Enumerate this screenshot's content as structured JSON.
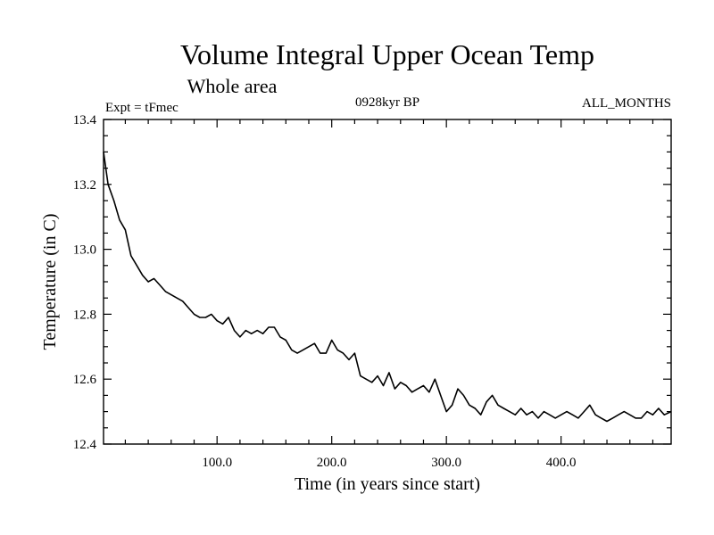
{
  "chart_data": {
    "type": "line",
    "title": "Volume Integral Upper Ocean Temp",
    "subtitle": "Whole area",
    "top_left_label": "Expt = tFmec",
    "top_center_label": "0928kyr BP",
    "top_right_label": "ALL_MONTHS",
    "xlabel": "Time (in years since start)",
    "ylabel": "Temperature (in C)",
    "xlim": [
      1,
      496
    ],
    "ylim": [
      12.4,
      13.4
    ],
    "x_ticks": [
      100,
      200,
      300,
      400
    ],
    "x_tick_labels": [
      "100.0",
      "200.0",
      "300.0",
      "400.0"
    ],
    "y_ticks": [
      12.4,
      12.6,
      12.8,
      13.0,
      13.2,
      13.4
    ],
    "y_tick_labels": [
      "12.4",
      "12.6",
      "12.8",
      "13.0",
      "13.2",
      "13.4"
    ],
    "grid": false,
    "series": [
      {
        "name": "Temperature",
        "x": [
          1,
          5,
          10,
          15,
          20,
          25,
          30,
          35,
          40,
          45,
          50,
          55,
          60,
          65,
          70,
          75,
          80,
          85,
          90,
          95,
          100,
          105,
          110,
          115,
          120,
          125,
          130,
          135,
          140,
          145,
          150,
          155,
          160,
          165,
          170,
          175,
          180,
          185,
          190,
          195,
          200,
          205,
          210,
          215,
          220,
          225,
          230,
          235,
          240,
          245,
          250,
          255,
          260,
          265,
          270,
          275,
          280,
          285,
          290,
          295,
          300,
          305,
          310,
          315,
          320,
          325,
          330,
          335,
          340,
          345,
          350,
          355,
          360,
          365,
          370,
          375,
          380,
          385,
          390,
          395,
          400,
          405,
          410,
          415,
          420,
          425,
          430,
          435,
          440,
          445,
          450,
          455,
          460,
          465,
          470,
          475,
          480,
          485,
          490,
          496
        ],
        "y": [
          13.3,
          13.2,
          13.15,
          13.09,
          13.06,
          12.98,
          12.95,
          12.92,
          12.9,
          12.91,
          12.89,
          12.87,
          12.86,
          12.85,
          12.84,
          12.82,
          12.8,
          12.79,
          12.79,
          12.8,
          12.78,
          12.77,
          12.79,
          12.75,
          12.73,
          12.75,
          12.74,
          12.75,
          12.74,
          12.76,
          12.76,
          12.73,
          12.72,
          12.69,
          12.68,
          12.69,
          12.7,
          12.71,
          12.68,
          12.68,
          12.72,
          12.69,
          12.68,
          12.66,
          12.68,
          12.61,
          12.6,
          12.59,
          12.61,
          12.58,
          12.62,
          12.57,
          12.59,
          12.58,
          12.56,
          12.57,
          12.58,
          12.56,
          12.6,
          12.55,
          12.5,
          12.52,
          12.57,
          12.55,
          12.52,
          12.51,
          12.49,
          12.53,
          12.55,
          12.52,
          12.51,
          12.5,
          12.49,
          12.51,
          12.49,
          12.5,
          12.48,
          12.5,
          12.49,
          12.48,
          12.49,
          12.5,
          12.49,
          12.48,
          12.5,
          12.52,
          12.49,
          12.48,
          12.47,
          12.48,
          12.49,
          12.5,
          12.49,
          12.48,
          12.48,
          12.5,
          12.49,
          12.51,
          12.49,
          12.5
        ]
      }
    ]
  }
}
